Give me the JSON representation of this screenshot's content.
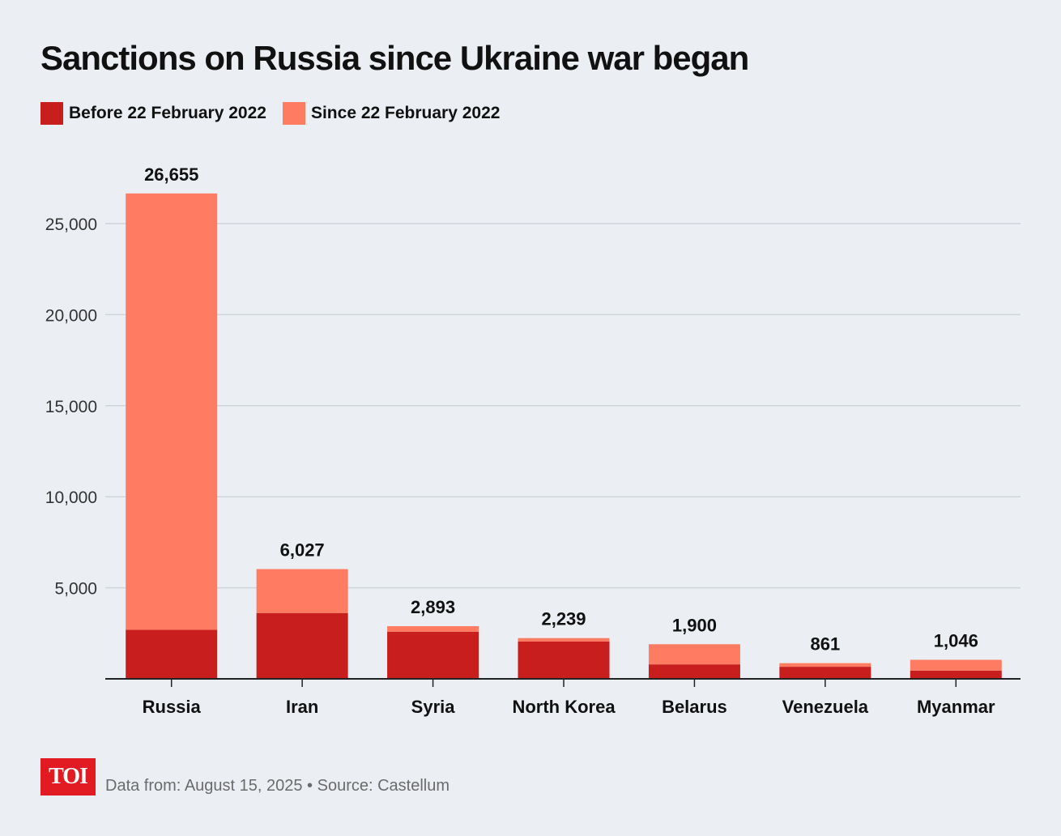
{
  "chart_data": {
    "type": "bar",
    "stacked": true,
    "title": "Sanctions on Russia since Ukraine war began",
    "categories": [
      "Russia",
      "Iran",
      "Syria",
      "North Korea",
      "Belarus",
      "Venezuela",
      "Myanmar"
    ],
    "series": [
      {
        "name": "Before 22 February 2022",
        "color": "#c81e1e",
        "values": [
          2695,
          3616,
          2590,
          2049,
          794,
          663,
          453
        ]
      },
      {
        "name": "Since 22 February 2022",
        "color": "#ff7b61",
        "values": [
          23960,
          2411,
          303,
          190,
          1106,
          198,
          593
        ]
      }
    ],
    "totals": [
      26655,
      6027,
      2893,
      2239,
      1900,
      861,
      1046
    ],
    "total_labels": [
      "26,655",
      "6,027",
      "2,893",
      "2,239",
      "1,900",
      "861",
      "1,046"
    ],
    "ylim": [
      0,
      27000
    ],
    "yticks": [
      5000,
      10000,
      15000,
      20000,
      25000
    ],
    "ytick_labels": [
      "5,000",
      "10,000",
      "15,000",
      "20,000",
      "25,000"
    ],
    "grid": true,
    "legend_position": "top-left"
  },
  "footer": {
    "logo_text": "TOI",
    "source_text": "Data from: August 15, 2025  •  Source: Castellum"
  },
  "colors": {
    "background": "#ebeff3",
    "gridline": "#cfd4d9",
    "axis": "#222222"
  }
}
